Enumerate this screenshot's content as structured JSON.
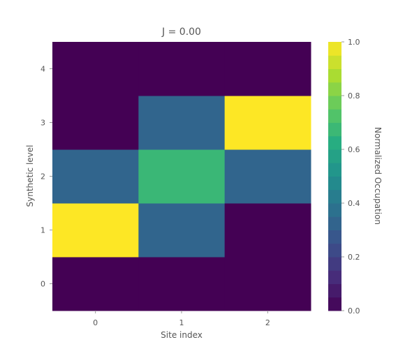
{
  "chart_data": {
    "type": "heatmap",
    "title": "J = 0.00",
    "xlabel": "Site index",
    "ylabel": "Synthetic level",
    "x_ticks": [
      "0",
      "1",
      "2"
    ],
    "y_ticks": [
      "0",
      "1",
      "2",
      "3",
      "4"
    ],
    "values": [
      [
        0.0,
        0.0,
        0.0
      ],
      [
        1.0,
        0.33,
        0.0
      ],
      [
        0.33,
        0.67,
        0.33
      ],
      [
        0.0,
        0.33,
        1.0
      ],
      [
        0.0,
        0.0,
        0.0
      ]
    ],
    "colorbar": {
      "label": "Normalized Occupation",
      "range": [
        0,
        1
      ],
      "ticks": [
        "0.0",
        "0.2",
        "0.4",
        "0.6",
        "0.8",
        "1.0"
      ],
      "colormap": "viridis"
    },
    "grid": false
  }
}
